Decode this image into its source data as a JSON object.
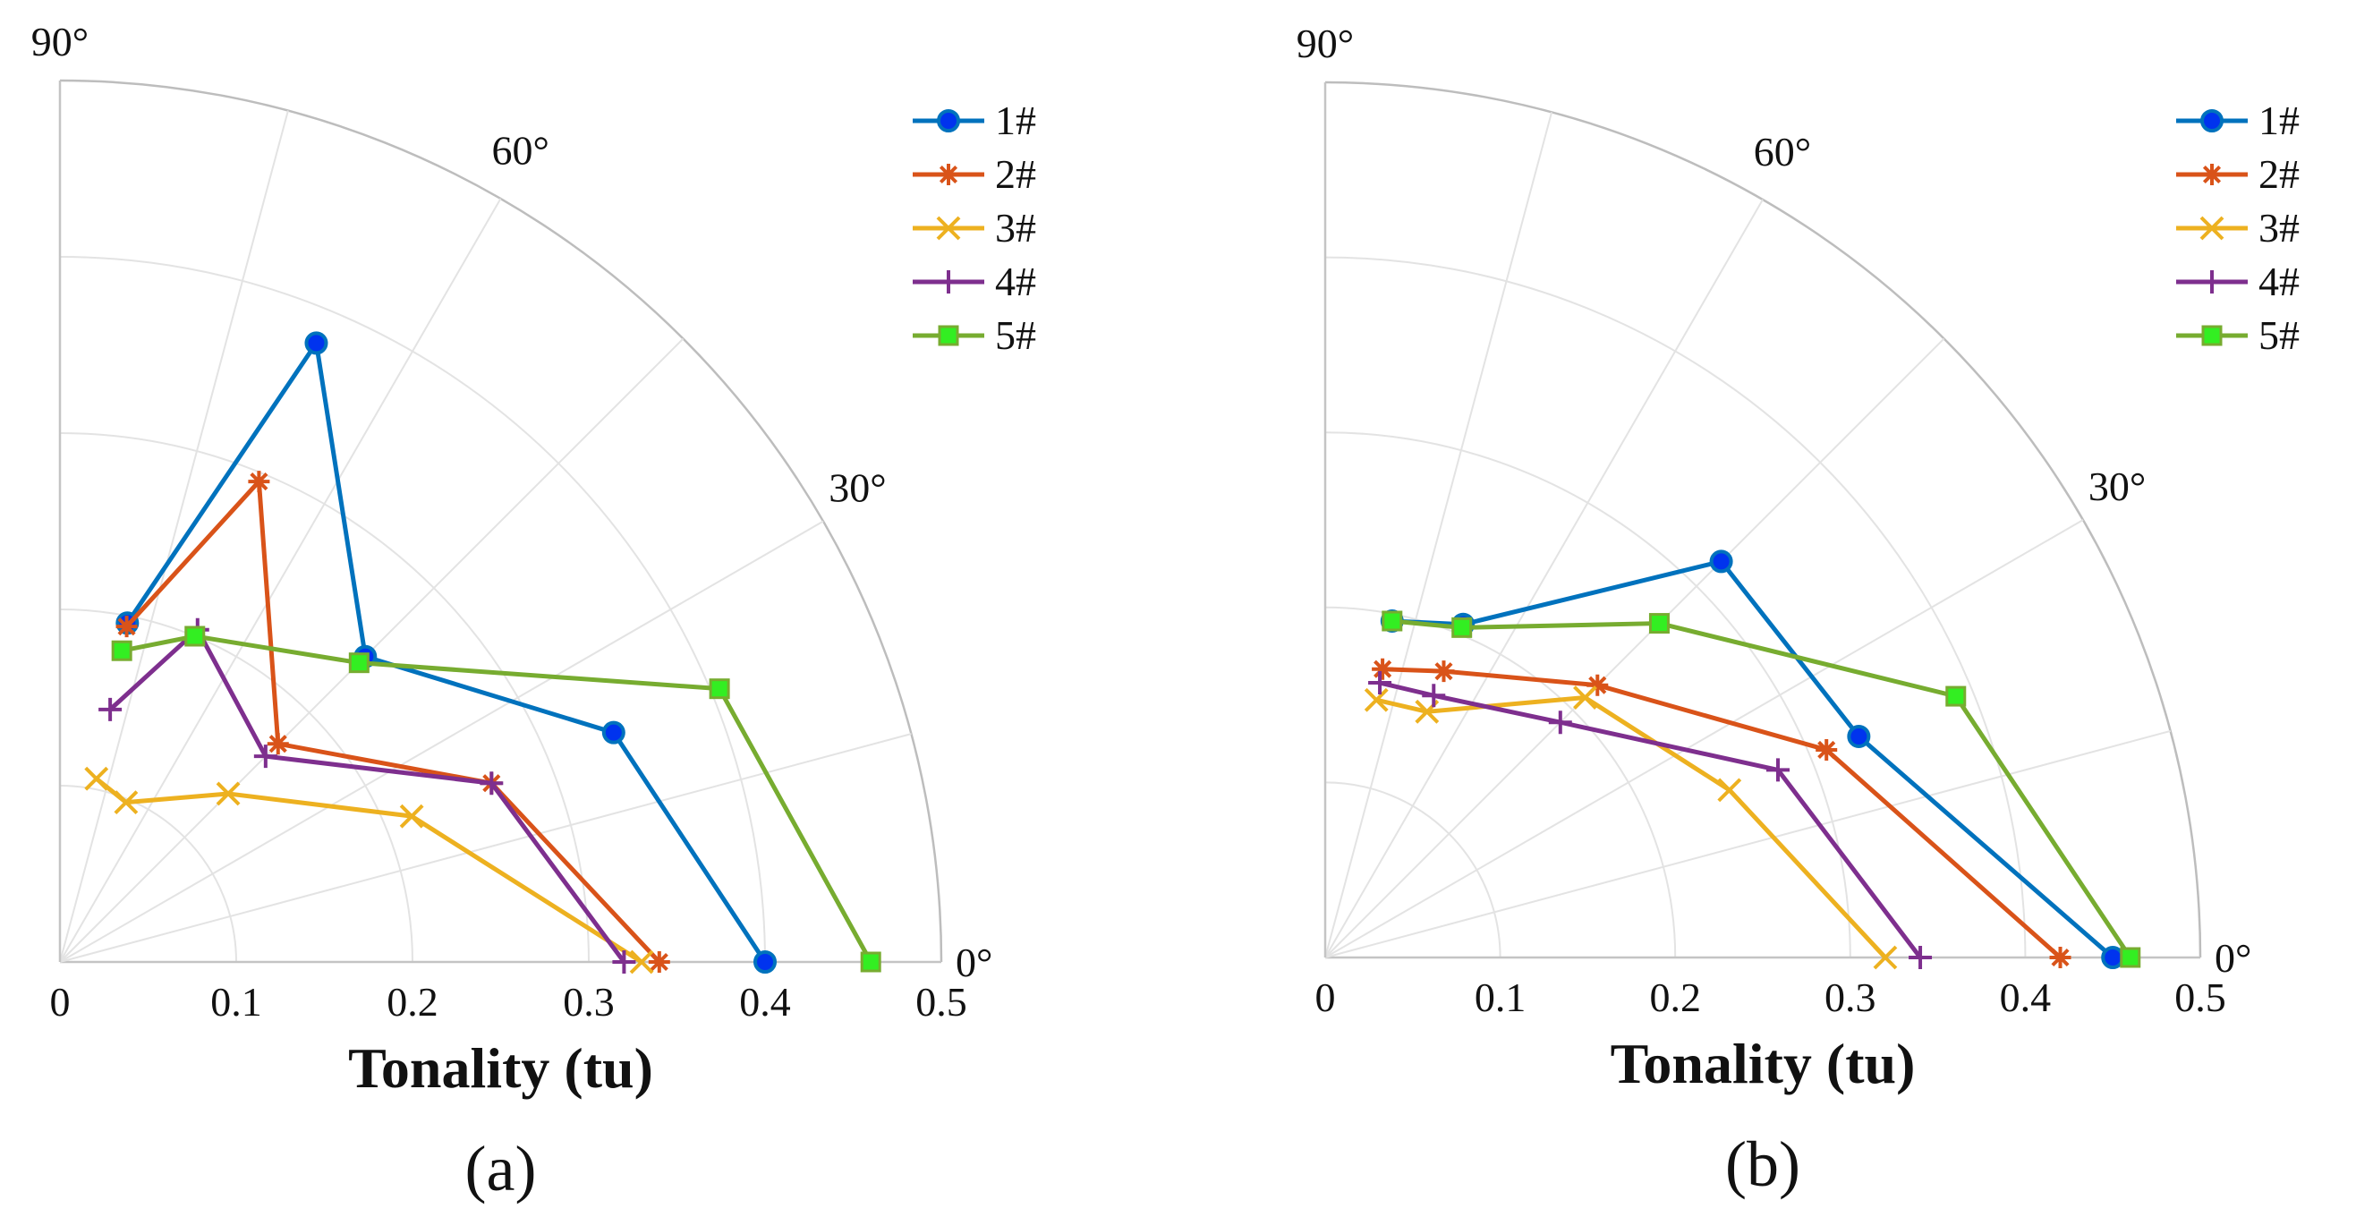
{
  "chart_data": [
    {
      "type": "polar-line",
      "panel_label": "(a)",
      "xlabel": "Tonality (tu)",
      "rlim": [
        0,
        0.5
      ],
      "theta_range_deg": [
        0,
        90
      ],
      "angle_labels": [
        "0°",
        "30°",
        "60°",
        "90°"
      ],
      "r_ticks": [
        "0",
        "0.1",
        "0.2",
        "0.3",
        "0.4",
        "0.5"
      ],
      "grid": true,
      "legend_position": "top-right",
      "angles_deg": [
        0,
        22.5,
        45,
        67.5,
        78.75
      ],
      "series": [
        {
          "name": "1#",
          "color": "#0072BD",
          "marker": "circle",
          "r": [
            0.4,
            0.34,
            0.245,
            0.38,
            0.196
          ]
        },
        {
          "name": "2#",
          "color": "#D95319",
          "marker": "asterisk",
          "r": [
            0.34,
            0.265,
            0.175,
            0.295,
            0.194
          ]
        },
        {
          "name": "3#",
          "color": "#EDB120",
          "marker": "x",
          "r": [
            0.33,
            0.216,
            0.135,
            0.098,
            0.106
          ]
        },
        {
          "name": "4#",
          "color": "#7E2F8E",
          "marker": "plus",
          "r": [
            0.32,
            0.265,
            0.165,
            0.204,
            0.146
          ]
        },
        {
          "name": "5#",
          "color": "#77AC30",
          "marker": "square",
          "r": [
            0.46,
            0.405,
            0.24,
            0.2,
            0.18
          ]
        }
      ]
    },
    {
      "type": "polar-line",
      "panel_label": "(b)",
      "xlabel": "Tonality (tu)",
      "rlim": [
        0,
        0.5
      ],
      "theta_range_deg": [
        0,
        90
      ],
      "angle_labels": [
        "0°",
        "30°",
        "60°",
        "90°"
      ],
      "r_ticks": [
        "0",
        "0.1",
        "0.2",
        "0.3",
        "0.4",
        "0.5"
      ],
      "grid": true,
      "legend_position": "top-right",
      "angles_deg": [
        0,
        22.5,
        45,
        67.5,
        78.75
      ],
      "series": [
        {
          "name": "1#",
          "color": "#0072BD",
          "marker": "circle",
          "r": [
            0.45,
            0.33,
            0.32,
            0.206,
            0.196
          ]
        },
        {
          "name": "2#",
          "color": "#D95319",
          "marker": "asterisk",
          "r": [
            0.42,
            0.31,
            0.22,
            0.177,
            0.168
          ]
        },
        {
          "name": "3#",
          "color": "#EDB120",
          "marker": "x",
          "r": [
            0.32,
            0.25,
            0.21,
            0.152,
            0.15
          ]
        },
        {
          "name": "4#",
          "color": "#7E2F8E",
          "marker": "plus",
          "r": [
            0.34,
            0.28,
            0.19,
            0.162,
            0.16
          ]
        },
        {
          "name": "5#",
          "color": "#77AC30",
          "marker": "square",
          "r": [
            0.46,
            0.39,
            0.27,
            0.204,
            0.196
          ]
        }
      ]
    }
  ]
}
